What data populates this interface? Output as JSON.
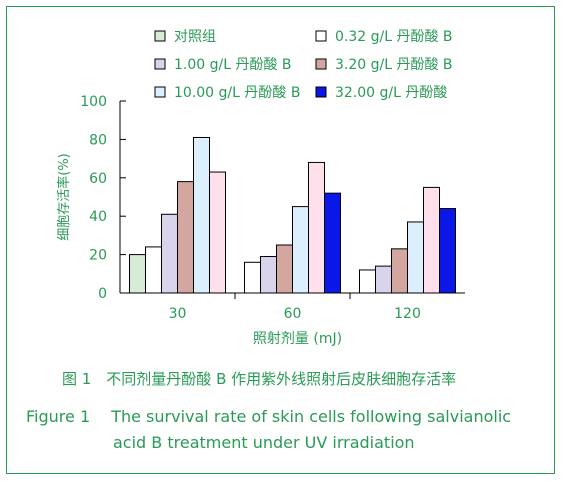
{
  "chart_data": {
    "type": "bar",
    "categories": [
      "30",
      "60",
      "120"
    ],
    "series": [
      {
        "name": "对照组",
        "values": [
          20,
          null,
          null
        ],
        "color": "#d6ecd6"
      },
      {
        "name": "0.32 g/L 丹酚酸 B",
        "values": [
          24,
          16,
          12
        ],
        "color": "#ffffff"
      },
      {
        "name": "1.00 g/L 丹酚酸 B",
        "values": [
          41,
          19,
          14
        ],
        "color": "#d9d3ec"
      },
      {
        "name": "3.20 g/L 丹酚酸 B",
        "values": [
          58,
          25,
          23
        ],
        "color": "#d4a6a0"
      },
      {
        "name": "10.00 g/L 丹酚酸 B",
        "values": [
          81,
          45,
          37
        ],
        "color": "#dcefff"
      },
      {
        "name": "32.00 g/L 丹酚酸",
        "values": [
          63,
          68,
          55
        ],
        "color": "#fde0ec"
      }
    ],
    "extra_bars": {
      "60": 52,
      "120": 44
    },
    "extra_color": "#0b17e6",
    "xlabel": "照射剂量 (mJ)",
    "ylabel": "细胞存活率(%)",
    "ylim": [
      0,
      100
    ],
    "yticks": [
      0,
      20,
      40,
      60,
      80,
      100
    ],
    "legend_position": "top",
    "legend_columns": [
      [
        "对照组",
        "1.00 g/L 丹酚酸 B",
        "10.00 g/L 丹酚酸 B"
      ],
      [
        "0.32 g/L 丹酚酸 B",
        "3.20 g/L 丹酚酸 B",
        "32.00 g/L 丹酚酸"
      ]
    ]
  },
  "caption": {
    "cn": "图 1　不同剂量丹酚酸 B 作用紫外线照射后皮肤细胞存活率",
    "en_line1": "Figure 1　 The survival rate of skin cells following salvianolic",
    "en_line2": "acid B treatment under UV irradiation"
  },
  "colors": {
    "accent": "#2a9a57",
    "text": "#2a9a57"
  }
}
